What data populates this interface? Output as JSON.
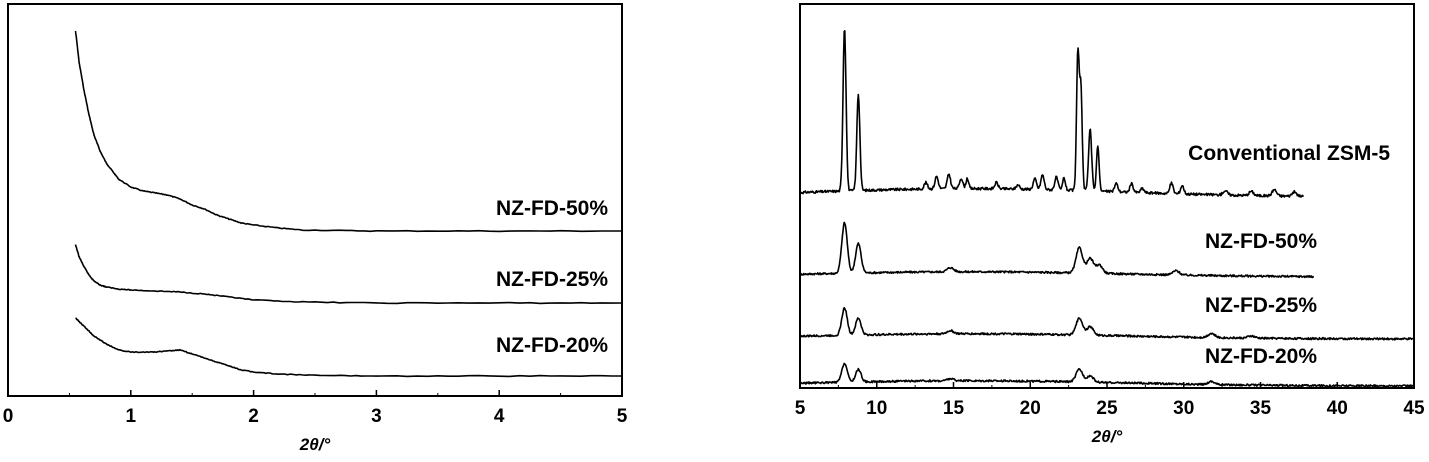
{
  "chart_data": [
    {
      "type": "line",
      "title": "",
      "xlabel": "2θ/°",
      "ylabel": "",
      "xlim": [
        0,
        5
      ],
      "xticks": [
        0,
        1,
        2,
        3,
        4,
        5
      ],
      "grid": false,
      "series": [
        {
          "name": "NZ-FD-50%",
          "x": [
            0.55,
            0.58,
            0.62,
            0.66,
            0.7,
            0.75,
            0.8,
            0.85,
            0.9,
            1.0,
            1.1,
            1.2,
            1.3,
            1.4,
            1.5,
            1.6,
            1.7,
            1.8,
            1.9,
            2.0,
            2.2,
            2.4,
            3.0,
            4.0,
            5.0
          ],
          "y": [
            100,
            84,
            70,
            58,
            48,
            40,
            34,
            30,
            26,
            22,
            20,
            19,
            18,
            16,
            13,
            11,
            8,
            6,
            4,
            3,
            1.5,
            0.5,
            0,
            0,
            0
          ]
        },
        {
          "name": "NZ-FD-25%",
          "x": [
            0.55,
            0.58,
            0.62,
            0.66,
            0.7,
            0.75,
            0.8,
            0.9,
            1.0,
            1.2,
            1.4,
            1.6,
            1.8,
            2.0,
            2.4,
            3.0,
            4.0,
            5.0
          ],
          "y": [
            29,
            23,
            18,
            14,
            11,
            9,
            8,
            7,
            6.5,
            6,
            5.5,
            4.5,
            3,
            1.5,
            0.5,
            0,
            0,
            0
          ]
        },
        {
          "name": "NZ-FD-20%",
          "x": [
            0.55,
            0.6,
            0.65,
            0.7,
            0.75,
            0.8,
            0.9,
            1.0,
            1.1,
            1.2,
            1.3,
            1.4,
            1.5,
            1.6,
            1.7,
            1.8,
            1.9,
            2.0,
            2.2,
            2.5,
            3.0,
            4.0,
            5.0
          ],
          "y": [
            29,
            26,
            23,
            20,
            18,
            16,
            13,
            12,
            12,
            12,
            12.5,
            13,
            11,
            9,
            7,
            5,
            3,
            2,
            1,
            0.3,
            0,
            0,
            0
          ]
        }
      ]
    },
    {
      "type": "line",
      "title": "",
      "xlabel": "2θ/°",
      "ylabel": "",
      "xlim": [
        5,
        45
      ],
      "xticks": [
        5,
        10,
        15,
        20,
        25,
        30,
        35,
        40,
        45
      ],
      "grid": false,
      "series": [
        {
          "name": "Conventional ZSM-5",
          "x_end": 37.8,
          "peaks": [
            [
              7.9,
              78,
              0.14
            ],
            [
              8.8,
              46,
              0.14
            ],
            [
              13.2,
              3,
              0.15
            ],
            [
              13.9,
              6,
              0.15
            ],
            [
              14.7,
              7,
              0.15
            ],
            [
              15.5,
              5,
              0.15
            ],
            [
              15.9,
              5,
              0.12
            ],
            [
              17.8,
              3,
              0.15
            ],
            [
              19.2,
              2,
              0.15
            ],
            [
              20.3,
              5,
              0.15
            ],
            [
              20.8,
              7,
              0.15
            ],
            [
              21.7,
              6,
              0.15
            ],
            [
              22.2,
              6,
              0.12
            ],
            [
              23.1,
              65,
              0.12
            ],
            [
              23.3,
              48,
              0.12
            ],
            [
              23.9,
              30,
              0.14
            ],
            [
              24.4,
              22,
              0.12
            ],
            [
              25.6,
              4,
              0.15
            ],
            [
              26.6,
              4,
              0.15
            ],
            [
              27.3,
              2,
              0.15
            ],
            [
              29.2,
              5,
              0.15
            ],
            [
              29.9,
              4,
              0.15
            ],
            [
              32.7,
              2,
              0.2
            ],
            [
              34.4,
              2,
              0.2
            ],
            [
              35.9,
              3,
              0.2
            ],
            [
              37.2,
              2,
              0.2
            ]
          ]
        },
        {
          "name": "NZ-FD-50%",
          "x_end": 38.5,
          "peaks": [
            [
              7.9,
              24,
              0.25
            ],
            [
              8.8,
              14,
              0.25
            ],
            [
              14.8,
              2,
              0.3
            ],
            [
              23.2,
              12,
              0.3
            ],
            [
              23.9,
              7,
              0.3
            ],
            [
              24.5,
              4,
              0.3
            ],
            [
              29.5,
              2,
              0.3
            ]
          ]
        },
        {
          "name": "NZ-FD-25%",
          "x_end": 45,
          "peaks": [
            [
              7.9,
              13,
              0.25
            ],
            [
              8.8,
              8,
              0.25
            ],
            [
              14.8,
              1.5,
              0.3
            ],
            [
              23.2,
              8,
              0.3
            ],
            [
              23.9,
              4,
              0.3
            ],
            [
              31.8,
              2,
              0.3
            ],
            [
              34.4,
              1,
              0.3
            ]
          ]
        },
        {
          "name": "NZ-FD-20%",
          "x_end": 45,
          "peaks": [
            [
              7.9,
              9,
              0.25
            ],
            [
              8.8,
              6,
              0.25
            ],
            [
              14.8,
              1,
              0.3
            ],
            [
              23.2,
              6,
              0.3
            ],
            [
              23.9,
              3,
              0.3
            ],
            [
              31.8,
              1.5,
              0.3
            ]
          ]
        }
      ]
    }
  ]
}
